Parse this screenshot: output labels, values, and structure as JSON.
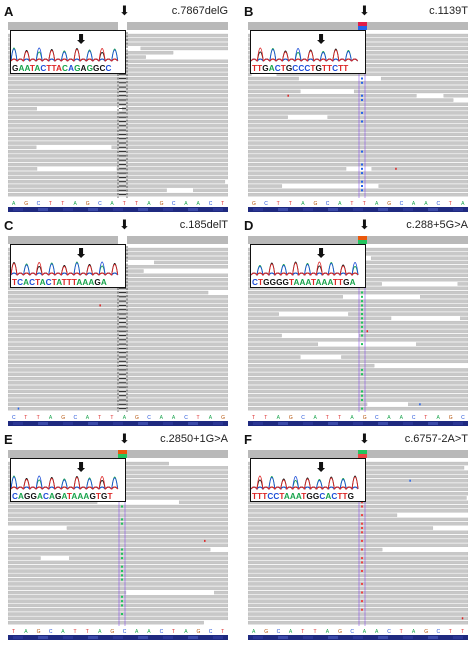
{
  "panels": [
    {
      "label": "A",
      "title": "c.7867delG",
      "arrow": "⬇",
      "seq": "GAATACTTACAGAGGCC",
      "seqColors": [
        "#111",
        "#16a34a",
        "#16a34a",
        "#dc2626",
        "#16a34a",
        "#1d4ed8",
        "#dc2626",
        "#dc2626",
        "#dc2626",
        "#16a34a",
        "#1d4ed8",
        "#16a34a",
        "#111",
        "#16a34a",
        "#111",
        "#111",
        "#1d4ed8"
      ],
      "variant": "del",
      "mark": "mid"
    },
    {
      "label": "B",
      "title": "c.1139T",
      "arrow": "⬇",
      "seq": "TTGACTGCCCTGTTCTT",
      "seqColors": [
        "#dc2626",
        "#dc2626",
        "#111",
        "#16a34a",
        "#1d4ed8",
        "#dc2626",
        "#111",
        "#1d4ed8",
        "#1d4ed8",
        "#1d4ed8",
        "#dc2626",
        "#111",
        "#dc2626",
        "#dc2626",
        "#1d4ed8",
        "#dc2626",
        "#dc2626"
      ],
      "variant": "snv-blue",
      "mark": "right"
    },
    {
      "label": "C",
      "title": "c.185delT",
      "arrow": "⬇",
      "seq": "TCACTACTATTTAAAGA",
      "seqColors": [
        "#dc2626",
        "#1d4ed8",
        "#16a34a",
        "#1d4ed8",
        "#dc2626",
        "#16a34a",
        "#1d4ed8",
        "#dc2626",
        "#16a34a",
        "#dc2626",
        "#dc2626",
        "#dc2626",
        "#16a34a",
        "#16a34a",
        "#16a34a",
        "#111",
        "#16a34a"
      ],
      "variant": "del",
      "mark": "mid"
    },
    {
      "label": "D",
      "title": "c.288+5G>A",
      "arrow": "⬇",
      "seq": "CTGGGGTAAATAAATTGA",
      "seqColors": [
        "#1d4ed8",
        "#dc2626",
        "#111",
        "#111",
        "#111",
        "#111",
        "#dc2626",
        "#16a34a",
        "#16a34a",
        "#16a34a",
        "#dc2626",
        "#16a34a",
        "#16a34a",
        "#16a34a",
        "#dc2626",
        "#dc2626",
        "#111",
        "#16a34a"
      ],
      "variant": "snv-green",
      "mark": "right"
    },
    {
      "label": "E",
      "title": "c.2850+1G>A",
      "arrow": "⬇",
      "seq": "CAGGACAGATAAAGTGT",
      "seqColors": [
        "#1d4ed8",
        "#16a34a",
        "#111",
        "#111",
        "#16a34a",
        "#1d4ed8",
        "#16a34a",
        "#111",
        "#16a34a",
        "#dc2626",
        "#16a34a",
        "#16a34a",
        "#16a34a",
        "#111",
        "#dc2626",
        "#111",
        "#dc2626"
      ],
      "variant": "snv-green",
      "mark": "mid"
    },
    {
      "label": "F",
      "title": "c.6757-2A>T",
      "arrow": "⬇",
      "seq": "TTTCCTAAATGGCACTTG",
      "seqColors": [
        "#dc2626",
        "#dc2626",
        "#dc2626",
        "#1d4ed8",
        "#1d4ed8",
        "#dc2626",
        "#16a34a",
        "#16a34a",
        "#16a34a",
        "#dc2626",
        "#111",
        "#111",
        "#1d4ed8",
        "#16a34a",
        "#1d4ed8",
        "#dc2626",
        "#dc2626",
        "#111"
      ],
      "variant": "snv-red",
      "mark": "right"
    }
  ],
  "colors": {
    "read": "#c8c8c8",
    "readEdge": "#b2b2b2",
    "seqbar": "#1f2a80",
    "gap": "#ffffff"
  }
}
